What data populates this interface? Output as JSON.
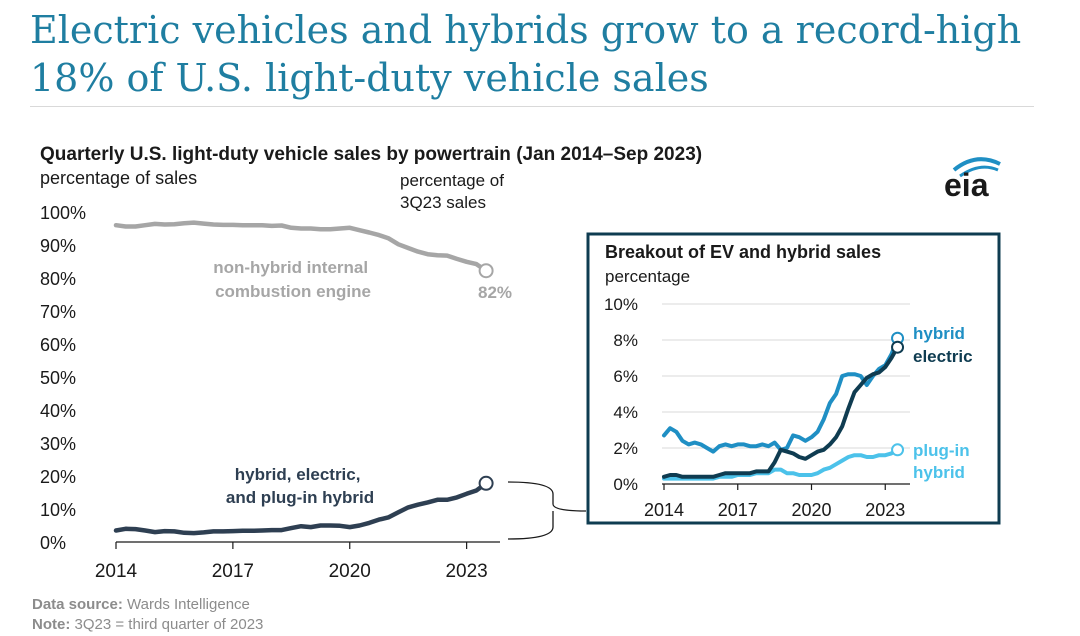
{
  "title": "Electric vehicles and hybrids grow to a record-high 18% of U.S. light-duty vehicle sales",
  "logo_text": "eia",
  "colors": {
    "title": "#1f7ea1",
    "non_hybrid": "#a6a6a6",
    "hybrid_total": "#2e3f52",
    "hybrid": "#1f8fc4",
    "electric": "#0f3c51",
    "plug_in_hybrid": "#4cc2ea",
    "inset_border": "#0f3c51"
  },
  "chart_data": [
    {
      "type": "line",
      "title": "Quarterly U.S. light-duty vehicle sales by powertrain (Jan 2014–Sep 2023)",
      "ylabel": "percentage of sales",
      "endpoint_header": "percentage of\n3Q23 sales",
      "ylim": [
        0,
        100
      ],
      "y_ticks": [
        "0%",
        "10%",
        "20%",
        "30%",
        "40%",
        "50%",
        "60%",
        "70%",
        "80%",
        "90%",
        "100%"
      ],
      "x_ticks": [
        "2014",
        "2017",
        "2020",
        "2023"
      ],
      "grid": false,
      "series": [
        {
          "name": "non-hybrid internal combustion engine",
          "end_label": "82%",
          "x": [
            2014.0,
            2014.25,
            2014.5,
            2014.75,
            2015.0,
            2015.25,
            2015.5,
            2015.75,
            2016.0,
            2016.25,
            2016.5,
            2016.75,
            2017.0,
            2017.25,
            2017.5,
            2017.75,
            2018.0,
            2018.25,
            2018.5,
            2018.75,
            2019.0,
            2019.25,
            2019.5,
            2019.75,
            2020.0,
            2020.25,
            2020.5,
            2020.75,
            2021.0,
            2021.25,
            2021.5,
            2021.75,
            2022.0,
            2022.25,
            2022.5,
            2022.75,
            2023.0,
            2023.25,
            2023.5
          ],
          "values": [
            96,
            95.6,
            95.6,
            96,
            96.4,
            96.2,
            96.3,
            96.6,
            96.8,
            96.5,
            96.2,
            96.1,
            96.1,
            96,
            96,
            96,
            95.8,
            95.9,
            95.2,
            95,
            95,
            94.8,
            94.8,
            95,
            95.2,
            94.5,
            93.8,
            93,
            92,
            90.2,
            89.1,
            88,
            87.2,
            86.9,
            86.8,
            85.8,
            84.9,
            84.2,
            82.2
          ]
        },
        {
          "name": "hybrid, electric,\nand plug-in hybrid",
          "x": [
            2014.0,
            2014.25,
            2014.5,
            2014.75,
            2015.0,
            2015.25,
            2015.5,
            2015.75,
            2016.0,
            2016.25,
            2016.5,
            2016.75,
            2017.0,
            2017.25,
            2017.5,
            2017.75,
            2018.0,
            2018.25,
            2018.5,
            2018.75,
            2019.0,
            2019.25,
            2019.5,
            2019.75,
            2020.0,
            2020.25,
            2020.5,
            2020.75,
            2021.0,
            2021.25,
            2021.5,
            2021.75,
            2022.0,
            2022.25,
            2022.5,
            2022.75,
            2023.0,
            2023.25,
            2023.5
          ],
          "values": [
            3.5,
            4,
            3.9,
            3.5,
            3,
            3.3,
            3.2,
            2.8,
            2.7,
            2.9,
            3.2,
            3.2,
            3.3,
            3.4,
            3.4,
            3.5,
            3.6,
            3.6,
            4.2,
            4.8,
            4.5,
            5,
            5,
            4.9,
            4.5,
            5,
            5.8,
            6.8,
            7.5,
            9,
            10.5,
            11.3,
            12,
            12.8,
            12.8,
            13.5,
            14.6,
            15.6,
            17.8
          ]
        }
      ]
    },
    {
      "type": "line",
      "title": "Breakout of EV and hybrid sales",
      "ylabel": "percentage",
      "ylim": [
        0,
        10
      ],
      "y_ticks": [
        "0%",
        "2%",
        "4%",
        "6%",
        "8%",
        "10%"
      ],
      "x_ticks": [
        "2014",
        "2017",
        "2020",
        "2023"
      ],
      "grid": true,
      "series": [
        {
          "name": "hybrid",
          "x": [
            2014.0,
            2014.25,
            2014.5,
            2014.75,
            2015.0,
            2015.25,
            2015.5,
            2015.75,
            2016.0,
            2016.25,
            2016.5,
            2016.75,
            2017.0,
            2017.25,
            2017.5,
            2017.75,
            2018.0,
            2018.25,
            2018.5,
            2018.75,
            2019.0,
            2019.25,
            2019.5,
            2019.75,
            2020.0,
            2020.25,
            2020.5,
            2020.75,
            2021.0,
            2021.25,
            2021.5,
            2021.75,
            2022.0,
            2022.25,
            2022.5,
            2022.75,
            2023.0,
            2023.25,
            2023.5
          ],
          "values": [
            2.7,
            3.1,
            2.9,
            2.4,
            2.2,
            2.3,
            2.2,
            2,
            1.8,
            2.1,
            2.2,
            2.1,
            2.2,
            2.2,
            2.1,
            2.1,
            2.2,
            2.1,
            2.3,
            1.9,
            2,
            2.7,
            2.6,
            2.4,
            2.6,
            2.9,
            3.6,
            4.5,
            5,
            6,
            6.1,
            6.1,
            6,
            5.5,
            6,
            6.4,
            6.6,
            7.2,
            8.1
          ]
        },
        {
          "name": "electric",
          "x": [
            2014.0,
            2014.25,
            2014.5,
            2014.75,
            2015.0,
            2015.25,
            2015.5,
            2015.75,
            2016.0,
            2016.25,
            2016.5,
            2016.75,
            2017.0,
            2017.25,
            2017.5,
            2017.75,
            2018.0,
            2018.25,
            2018.5,
            2018.75,
            2019.0,
            2019.25,
            2019.5,
            2019.75,
            2020.0,
            2020.25,
            2020.5,
            2020.75,
            2021.0,
            2021.25,
            2021.5,
            2021.75,
            2022.0,
            2022.25,
            2022.5,
            2022.75,
            2023.0,
            2023.25,
            2023.5
          ],
          "values": [
            0.4,
            0.5,
            0.5,
            0.4,
            0.4,
            0.4,
            0.4,
            0.4,
            0.4,
            0.5,
            0.6,
            0.6,
            0.6,
            0.6,
            0.6,
            0.7,
            0.7,
            0.7,
            1.2,
            1.9,
            1.8,
            1.7,
            1.5,
            1.4,
            1.6,
            1.8,
            1.9,
            2.2,
            2.6,
            3.2,
            4.2,
            5.1,
            5.5,
            5.9,
            6.1,
            6.2,
            6.5,
            7,
            7.6
          ]
        },
        {
          "name": "plug-in\nhybrid",
          "x": [
            2014.0,
            2014.25,
            2014.5,
            2014.75,
            2015.0,
            2015.25,
            2015.5,
            2015.75,
            2016.0,
            2016.25,
            2016.5,
            2016.75,
            2017.0,
            2017.25,
            2017.5,
            2017.75,
            2018.0,
            2018.25,
            2018.5,
            2018.75,
            2019.0,
            2019.25,
            2019.5,
            2019.75,
            2020.0,
            2020.25,
            2020.5,
            2020.75,
            2021.0,
            2021.25,
            2021.5,
            2021.75,
            2022.0,
            2022.25,
            2022.5,
            2022.75,
            2023.0,
            2023.25,
            2023.5
          ],
          "values": [
            0.3,
            0.3,
            0.3,
            0.3,
            0.3,
            0.3,
            0.3,
            0.3,
            0.3,
            0.4,
            0.4,
            0.4,
            0.5,
            0.5,
            0.5,
            0.6,
            0.6,
            0.6,
            0.8,
            0.8,
            0.6,
            0.6,
            0.5,
            0.5,
            0.5,
            0.6,
            0.8,
            0.9,
            1.1,
            1.3,
            1.5,
            1.6,
            1.6,
            1.5,
            1.5,
            1.6,
            1.6,
            1.7,
            1.9
          ]
        }
      ]
    }
  ],
  "footer": {
    "source_label": "Data source:",
    "source_text": " Wards Intelligence",
    "note_label": "Note:",
    "note_text": " 3Q23 = third quarter of 2023"
  }
}
